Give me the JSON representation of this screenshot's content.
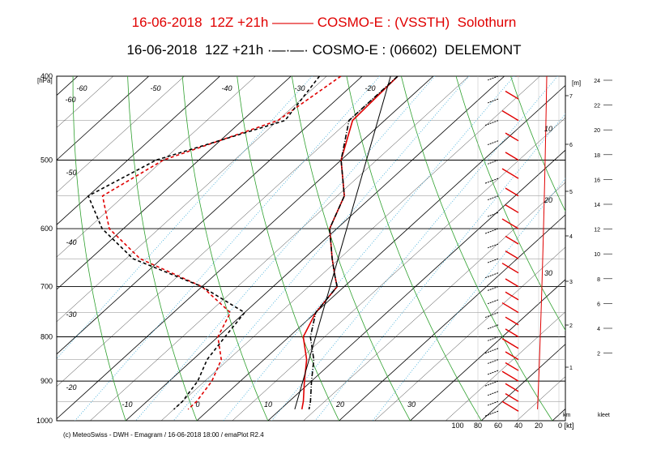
{
  "header": {
    "line1": "16-06-2018  12Z +21h ——— COSMO-E : (VSSTH)  Solothurn",
    "line2": "16-06-2018  12Z +21h ·—·—· COSMO-E : (06602)  DELEMONT"
  },
  "footer": "(c) MeteoSwiss - DWH - Emagram / 16-06-2018  18:00  / emaPlot R2.4",
  "colors": {
    "solothurn": "#e00000",
    "delemont": "#000000",
    "dry_adiabat": "#2ea02e",
    "mixing": "#3aaad8",
    "isotherm": "#000000",
    "wind_red": "#e00000"
  },
  "chart_data": {
    "type": "line",
    "title": "",
    "yaxis": {
      "label": "[hPa]",
      "ticks": [
        "400",
        "500",
        "600",
        "700",
        "800",
        "900",
        "1000"
      ],
      "scale": "log"
    },
    "xaxis": {
      "ticks": [
        "-10",
        "0",
        "10",
        "20",
        "30"
      ]
    },
    "isotherm_labels": [
      "-60",
      "-50",
      "-40",
      "-30",
      "-20",
      "-60",
      "-50",
      "-40",
      "-30",
      "-20"
    ],
    "mixing_labels": [
      "10",
      "20",
      "30"
    ],
    "height_axis": {
      "label": "[m]",
      "ticks": [
        "1",
        "2",
        "3",
        "4",
        "5",
        "6",
        "7"
      ],
      "unit": "km"
    },
    "right_axis": {
      "ticks": [
        "2",
        "4",
        "6",
        "8",
        "10",
        "12",
        "14",
        "16",
        "18",
        "20",
        "22",
        "24"
      ],
      "unit": "kleet"
    },
    "wind_axis": {
      "ticks": [
        "100",
        "80",
        "60",
        "40",
        "20",
        "0 [kt]"
      ]
    },
    "series": [
      {
        "name": "Solothurn",
        "temperature": [
          [
            400,
            -25
          ],
          [
            450,
            -24.5
          ],
          [
            500,
            -20
          ],
          [
            550,
            -14
          ],
          [
            600,
            -11
          ],
          [
            650,
            -6
          ],
          [
            680,
            -3
          ],
          [
            700,
            -1
          ],
          [
            750,
            0
          ],
          [
            800,
            2
          ],
          [
            850,
            6
          ],
          [
            900,
            9
          ],
          [
            950,
            12
          ],
          [
            970,
            13
          ]
        ],
        "dewpoint": [
          [
            400,
            -33
          ],
          [
            450,
            -35
          ],
          [
            500,
            -45
          ],
          [
            550,
            -48
          ],
          [
            600,
            -42
          ],
          [
            650,
            -33
          ],
          [
            700,
            -20
          ],
          [
            750,
            -12
          ],
          [
            800,
            -10
          ],
          [
            850,
            -6
          ],
          [
            900,
            -4
          ],
          [
            950,
            -3
          ],
          [
            970,
            -3
          ]
        ]
      },
      {
        "name": "DELEMONT",
        "temperature": [
          [
            400,
            -25
          ],
          [
            450,
            -25
          ],
          [
            500,
            -20
          ],
          [
            550,
            -14
          ],
          [
            600,
            -11
          ],
          [
            650,
            -6
          ],
          [
            680,
            -3
          ],
          [
            700,
            -1
          ],
          [
            750,
            0
          ],
          [
            800,
            3
          ],
          [
            850,
            7
          ],
          [
            900,
            10
          ],
          [
            950,
            13
          ],
          [
            970,
            14
          ]
        ],
        "dewpoint": [
          [
            400,
            -36
          ],
          [
            450,
            -34
          ],
          [
            500,
            -46
          ],
          [
            550,
            -50
          ],
          [
            600,
            -43
          ],
          [
            650,
            -34
          ],
          [
            700,
            -20
          ],
          [
            750,
            -10
          ],
          [
            800,
            -9
          ],
          [
            850,
            -8
          ],
          [
            900,
            -6
          ],
          [
            950,
            -5
          ],
          [
            970,
            -5
          ]
        ]
      }
    ]
  }
}
